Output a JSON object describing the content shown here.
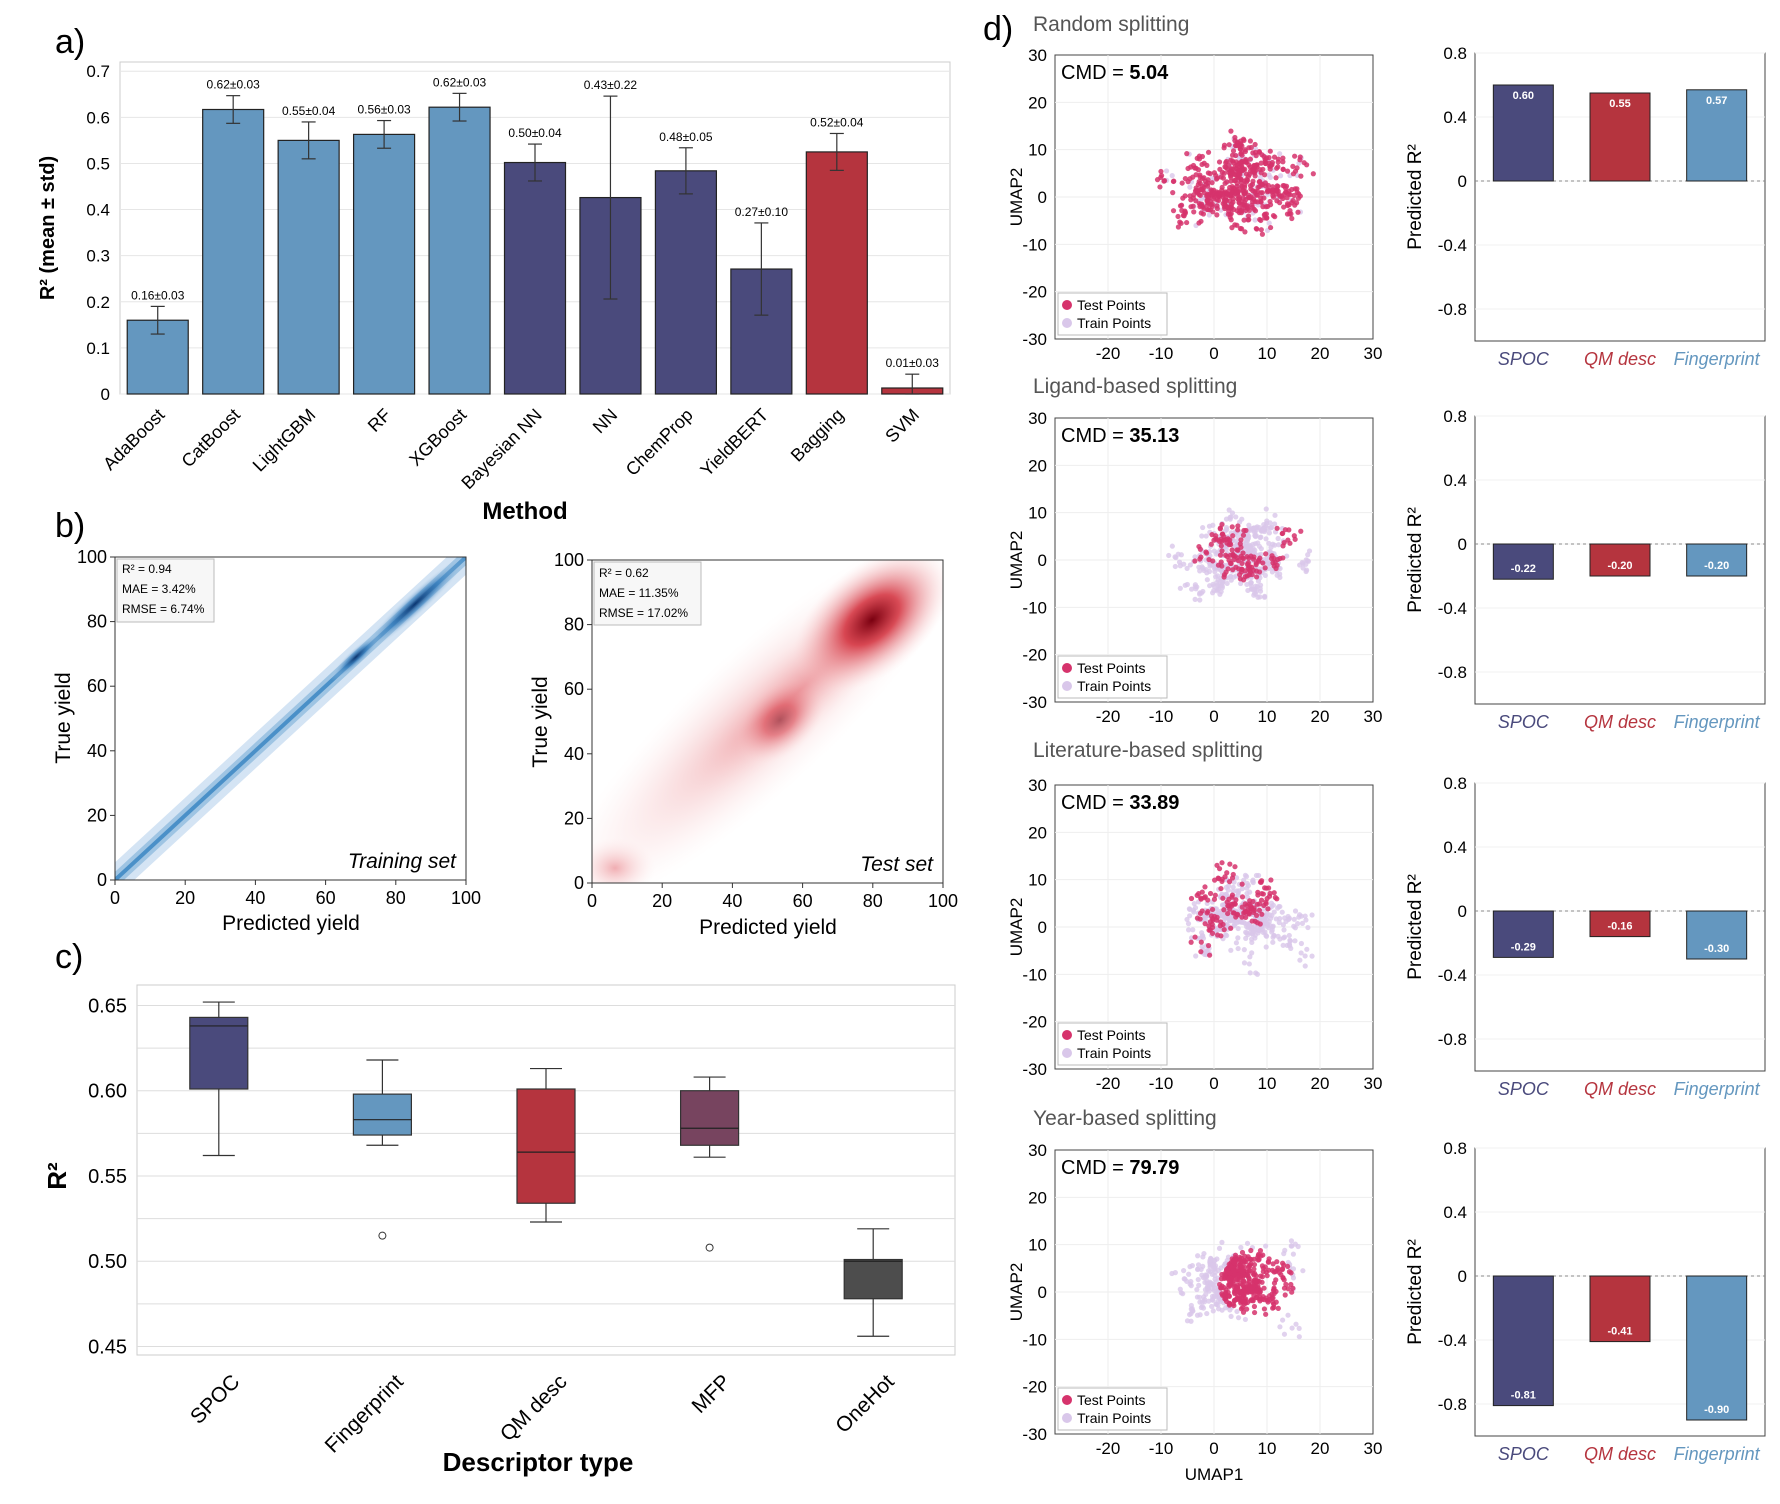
{
  "panel_labels": {
    "a": "a)",
    "b": "b)",
    "c": "c)",
    "d": "d)"
  },
  "colors": {
    "light_blue": "#6497bf",
    "navy": "#4a4a7c",
    "red": "#b5343e",
    "plum": "#77445f",
    "dark_gray": "#4d4d4d",
    "pink": "#d6336c",
    "lavender": "#d9c7ea",
    "grid": "#e6e6e6"
  },
  "chart_data": [
    {
      "id": "a",
      "type": "bar",
      "title": "",
      "xlabel": "Method",
      "ylabel": "R² (mean ± std)",
      "ylim": [
        0,
        0.72
      ],
      "yticks": [
        0,
        0.1,
        0.2,
        0.3,
        0.4,
        0.5,
        0.6,
        0.7
      ],
      "ytick_labels": [
        "0",
        "0.1",
        "0.2",
        "0.3",
        "0.4",
        "0.5",
        "0.6",
        "0.7"
      ],
      "categories": [
        "AdaBoost",
        "CatBoost",
        "LightGBM",
        "RF",
        "XGBoost",
        "Bayesian NN",
        "NN",
        "ChemProp",
        "YieldBERT",
        "Bagging",
        "SVM"
      ],
      "values": [
        0.16,
        0.617,
        0.55,
        0.563,
        0.622,
        0.502,
        0.426,
        0.484,
        0.271,
        0.525,
        0.013
      ],
      "errors": [
        0.03,
        0.03,
        0.04,
        0.03,
        0.03,
        0.04,
        0.22,
        0.05,
        0.1,
        0.04,
        0.03
      ],
      "value_labels": [
        "0.16±0.03",
        "0.62±0.03",
        "0.55±0.04",
        "0.56±0.03",
        "0.62±0.03",
        "0.50±0.04",
        "0.43±0.22",
        "0.48±0.05",
        "0.27±0.10",
        "0.52±0.04",
        "0.01±0.03"
      ],
      "bar_colors": [
        "light_blue",
        "light_blue",
        "light_blue",
        "light_blue",
        "light_blue",
        "navy",
        "navy",
        "navy",
        "navy",
        "red",
        "red"
      ]
    },
    {
      "id": "b1",
      "type": "heatmap",
      "subtitle": "Training set",
      "xlabel": "Predicted yield",
      "ylabel": "True yield",
      "xlim": [
        0,
        100
      ],
      "ylim": [
        0,
        100
      ],
      "ticks": [
        0,
        20,
        40,
        60,
        80,
        100
      ],
      "stats": [
        "R² = 0.94",
        "MAE = 3.42%",
        "RMSE = 6.74%"
      ]
    },
    {
      "id": "b2",
      "type": "heatmap",
      "subtitle": "Test set",
      "xlabel": "Predicted yield",
      "ylabel": "True yield",
      "xlim": [
        0,
        100
      ],
      "ylim": [
        0,
        100
      ],
      "ticks": [
        0,
        20,
        40,
        60,
        80,
        100
      ],
      "stats": [
        "R² = 0.62",
        "MAE = 11.35%",
        "RMSE = 17.02%"
      ]
    },
    {
      "id": "c",
      "type": "box",
      "xlabel": "Descriptor type",
      "ylabel": "R²",
      "ylim": [
        0.445,
        0.662
      ],
      "yticks": [
        0.45,
        0.5,
        0.55,
        0.6,
        0.65
      ],
      "ytick_labels": [
        "0.45",
        "0.50",
        "0.55",
        "0.60",
        "0.65"
      ],
      "categories": [
        "SPOC",
        "Fingerprint",
        "QM desc",
        "MFP",
        "OneHot"
      ],
      "boxes": [
        {
          "min": 0.562,
          "q1": 0.601,
          "median": 0.638,
          "q3": 0.643,
          "max": 0.652,
          "outliers": [],
          "color": "navy"
        },
        {
          "min": 0.568,
          "q1": 0.574,
          "median": 0.583,
          "q3": 0.598,
          "max": 0.618,
          "outliers": [
            0.515
          ],
          "color": "light_blue"
        },
        {
          "min": 0.523,
          "q1": 0.534,
          "median": 0.564,
          "q3": 0.601,
          "max": 0.613,
          "outliers": [],
          "color": "red"
        },
        {
          "min": 0.561,
          "q1": 0.568,
          "median": 0.578,
          "q3": 0.6,
          "max": 0.608,
          "outliers": [
            0.508
          ],
          "color": "plum"
        },
        {
          "min": 0.456,
          "q1": 0.478,
          "median": 0.5,
          "q3": 0.501,
          "max": 0.519,
          "outliers": [],
          "color": "dark_gray"
        }
      ]
    },
    {
      "id": "d",
      "type": "scatter",
      "xlabel": "UMAP1",
      "ylabel": "UMAP2",
      "xlim": [
        -30,
        30
      ],
      "ylim": [
        -30,
        30
      ],
      "xticks": [
        -20,
        -10,
        0,
        10,
        20,
        30
      ],
      "yticks": [
        30,
        20,
        10,
        0,
        -10,
        -20,
        -30
      ],
      "legend": [
        "Test Points",
        "Train Points"
      ],
      "cmd_prefix": "CMD = ",
      "rows": [
        {
          "title": "Random splitting",
          "cmd": "5.04",
          "seed": 11,
          "test_pattern": "mixed"
        },
        {
          "title": "Ligand-based splitting",
          "cmd": "35.13",
          "seed": 23,
          "test_pattern": "clusters"
        },
        {
          "title": "Literature-based splitting",
          "cmd": "33.89",
          "seed": 37,
          "test_pattern": "clusters"
        },
        {
          "title": "Year-based splitting",
          "cmd": "79.79",
          "seed": 53,
          "test_pattern": "core"
        }
      ]
    },
    {
      "id": "d_bars",
      "type": "bar",
      "ylabel": "Predicted R²",
      "ylim": [
        -1.0,
        0.8
      ],
      "yticks": [
        0.8,
        0.4,
        0,
        -0.4,
        -0.8
      ],
      "ytick_labels": [
        "0.8",
        "0.4",
        "0",
        "-0.4",
        "-0.8"
      ],
      "categories": [
        "SPOC",
        "QM desc",
        "Fingerprint"
      ],
      "bar_colors": [
        "navy",
        "red",
        "light_blue"
      ],
      "rows": [
        {
          "values": [
            0.6,
            0.55,
            0.57
          ],
          "labels": [
            "0.60",
            "0.55",
            "0.57"
          ]
        },
        {
          "values": [
            -0.22,
            -0.2,
            -0.2
          ],
          "labels": [
            "-0.22",
            "-0.20",
            "-0.20"
          ]
        },
        {
          "values": [
            -0.29,
            -0.16,
            -0.3
          ],
          "labels": [
            "-0.29",
            "-0.16",
            "-0.30"
          ]
        },
        {
          "values": [
            -0.81,
            -0.41,
            -0.9
          ],
          "labels": [
            "-0.81",
            "-0.41",
            "-0.90"
          ]
        }
      ]
    }
  ]
}
